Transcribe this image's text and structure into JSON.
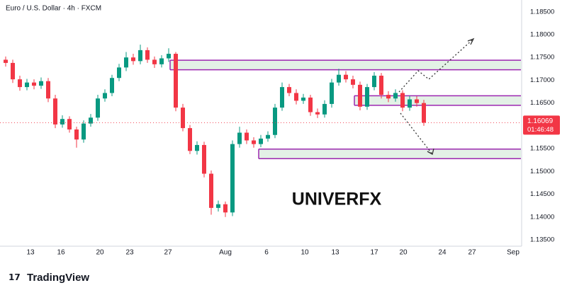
{
  "chart_data": {
    "type": "candlestick",
    "title": "Euro / U.S. Dollar · 4h · FXCM",
    "watermark": "UNIVERFX",
    "brand": "TradingView",
    "up_color": "#089981",
    "down_color": "#f23645",
    "open": [
      1.1745,
      1.1738,
      1.1702,
      1.1685,
      1.1695,
      1.1688,
      1.1698,
      1.166,
      1.1603,
      1.1615,
      1.1592,
      1.157,
      1.1605,
      1.1618,
      1.166,
      1.1672,
      1.1705,
      1.1728,
      1.175,
      1.1742,
      1.1766,
      1.1745,
      1.1735,
      1.1748,
      1.1758,
      1.164,
      1.1595,
      1.1545,
      1.1558,
      1.1495,
      1.142,
      1.1428,
      1.141,
      1.156,
      1.1585,
      1.1568,
      1.156,
      1.1572,
      1.158,
      1.164,
      1.1685,
      1.1672,
      1.1655,
      1.1662,
      1.163,
      1.1625,
      1.1648,
      1.1695,
      1.1712,
      1.1702,
      1.169,
      1.1642,
      1.1685,
      1.171,
      1.1668,
      1.166,
      1.1672,
      1.164,
      1.1658,
      1.165
    ],
    "high": [
      1.1752,
      1.1745,
      1.171,
      1.1703,
      1.1702,
      1.1706,
      1.1705,
      1.1668,
      1.1623,
      1.1621,
      1.1598,
      1.1612,
      1.1626,
      1.1668,
      1.168,
      1.1712,
      1.1736,
      1.1762,
      1.1758,
      1.1778,
      1.1772,
      1.1752,
      1.1755,
      1.177,
      1.1762,
      1.1648,
      1.1602,
      1.1566,
      1.1565,
      1.1502,
      1.1436,
      1.1434,
      1.1568,
      1.1598,
      1.1592,
      1.1575,
      1.158,
      1.1588,
      1.1648,
      1.1695,
      1.1692,
      1.168,
      1.167,
      1.1668,
      1.1638,
      1.1656,
      1.1703,
      1.1725,
      1.172,
      1.171,
      1.1697,
      1.1692,
      1.1718,
      1.1716,
      1.1676,
      1.168,
      1.1678,
      1.1666,
      1.1665,
      1.1657
    ],
    "low": [
      1.173,
      1.1694,
      1.1677,
      1.1678,
      1.168,
      1.1681,
      1.1652,
      1.1595,
      1.1596,
      1.1585,
      1.1552,
      1.1563,
      1.1598,
      1.1611,
      1.1653,
      1.1665,
      1.1698,
      1.172,
      1.1734,
      1.1735,
      1.1738,
      1.1727,
      1.1728,
      1.174,
      1.1632,
      1.1588,
      1.1538,
      1.1537,
      1.1487,
      1.1405,
      1.1412,
      1.14,
      1.1402,
      1.1552,
      1.156,
      1.1552,
      1.1553,
      1.1565,
      1.1573,
      1.1633,
      1.1665,
      1.1647,
      1.1648,
      1.1622,
      1.1617,
      1.1618,
      1.164,
      1.1688,
      1.1695,
      1.1682,
      1.1634,
      1.1635,
      1.1678,
      1.166,
      1.1652,
      1.1653,
      1.1632,
      1.1633,
      1.1642,
      1.16
    ],
    "close": [
      1.1738,
      1.1702,
      1.1685,
      1.1695,
      1.1688,
      1.1698,
      1.166,
      1.1603,
      1.1615,
      1.1592,
      1.157,
      1.1605,
      1.1618,
      1.166,
      1.1672,
      1.1705,
      1.1728,
      1.175,
      1.1742,
      1.1766,
      1.1745,
      1.1735,
      1.1748,
      1.1758,
      1.164,
      1.1595,
      1.1545,
      1.1558,
      1.1495,
      1.142,
      1.1428,
      1.141,
      1.156,
      1.1585,
      1.1568,
      1.156,
      1.1572,
      1.158,
      1.164,
      1.1685,
      1.1672,
      1.1655,
      1.1662,
      1.163,
      1.1625,
      1.1648,
      1.1695,
      1.1712,
      1.1702,
      1.169,
      1.1642,
      1.1685,
      1.171,
      1.1668,
      1.166,
      1.1672,
      1.164,
      1.1658,
      1.165,
      1.16069
    ],
    "last_price": 1.16069,
    "countdown": "01:46:48",
    "zones": [
      {
        "x": [
          23.2,
          72.7
        ],
        "y": [
          1.1723,
          1.1744
        ]
      },
      {
        "x": [
          49.2,
          72.7
        ],
        "y": [
          1.1645,
          1.1666
        ]
      },
      {
        "x": [
          35.7,
          72.7
        ],
        "y": [
          1.1528,
          1.1549
        ]
      }
    ],
    "zone_color": "#9c27b0",
    "zone_fill": "#e3f1e6",
    "xlim": [
      -0.8,
      72.7
    ],
    "ylim": [
      1.1336,
      1.1876
    ],
    "xticks": [
      {
        "value": 3.5,
        "label": "13"
      },
      {
        "value": 7.8,
        "label": "16"
      },
      {
        "value": 13.3,
        "label": "20"
      },
      {
        "value": 17.5,
        "label": "23"
      },
      {
        "value": 22.9,
        "label": "27"
      },
      {
        "value": 31,
        "label": "Aug"
      },
      {
        "value": 36.8,
        "label": "6"
      },
      {
        "value": 42.2,
        "label": "10"
      },
      {
        "value": 46.5,
        "label": "13"
      },
      {
        "value": 52,
        "label": "17"
      },
      {
        "value": 56.1,
        "label": "20"
      },
      {
        "value": 61.6,
        "label": "24"
      },
      {
        "value": 65.8,
        "label": "27"
      },
      {
        "value": 71.6,
        "label": "Sep"
      }
    ],
    "yticks": [
      {
        "value": 1.135,
        "label": "1.13500"
      },
      {
        "value": 1.14,
        "label": "1.14000"
      },
      {
        "value": 1.145,
        "label": "1.14500"
      },
      {
        "value": 1.15,
        "label": "1.15000"
      },
      {
        "value": 1.155,
        "label": "1.15500"
      },
      {
        "value": 1.16,
        "label": "1.16000"
      },
      {
        "value": 1.165,
        "label": "1.16500"
      },
      {
        "value": 1.17,
        "label": "1.17000"
      },
      {
        "value": 1.175,
        "label": "1.17500"
      },
      {
        "value": 1.18,
        "label": "1.18000"
      },
      {
        "value": 1.185,
        "label": "1.18500"
      }
    ],
    "grid": false
  }
}
